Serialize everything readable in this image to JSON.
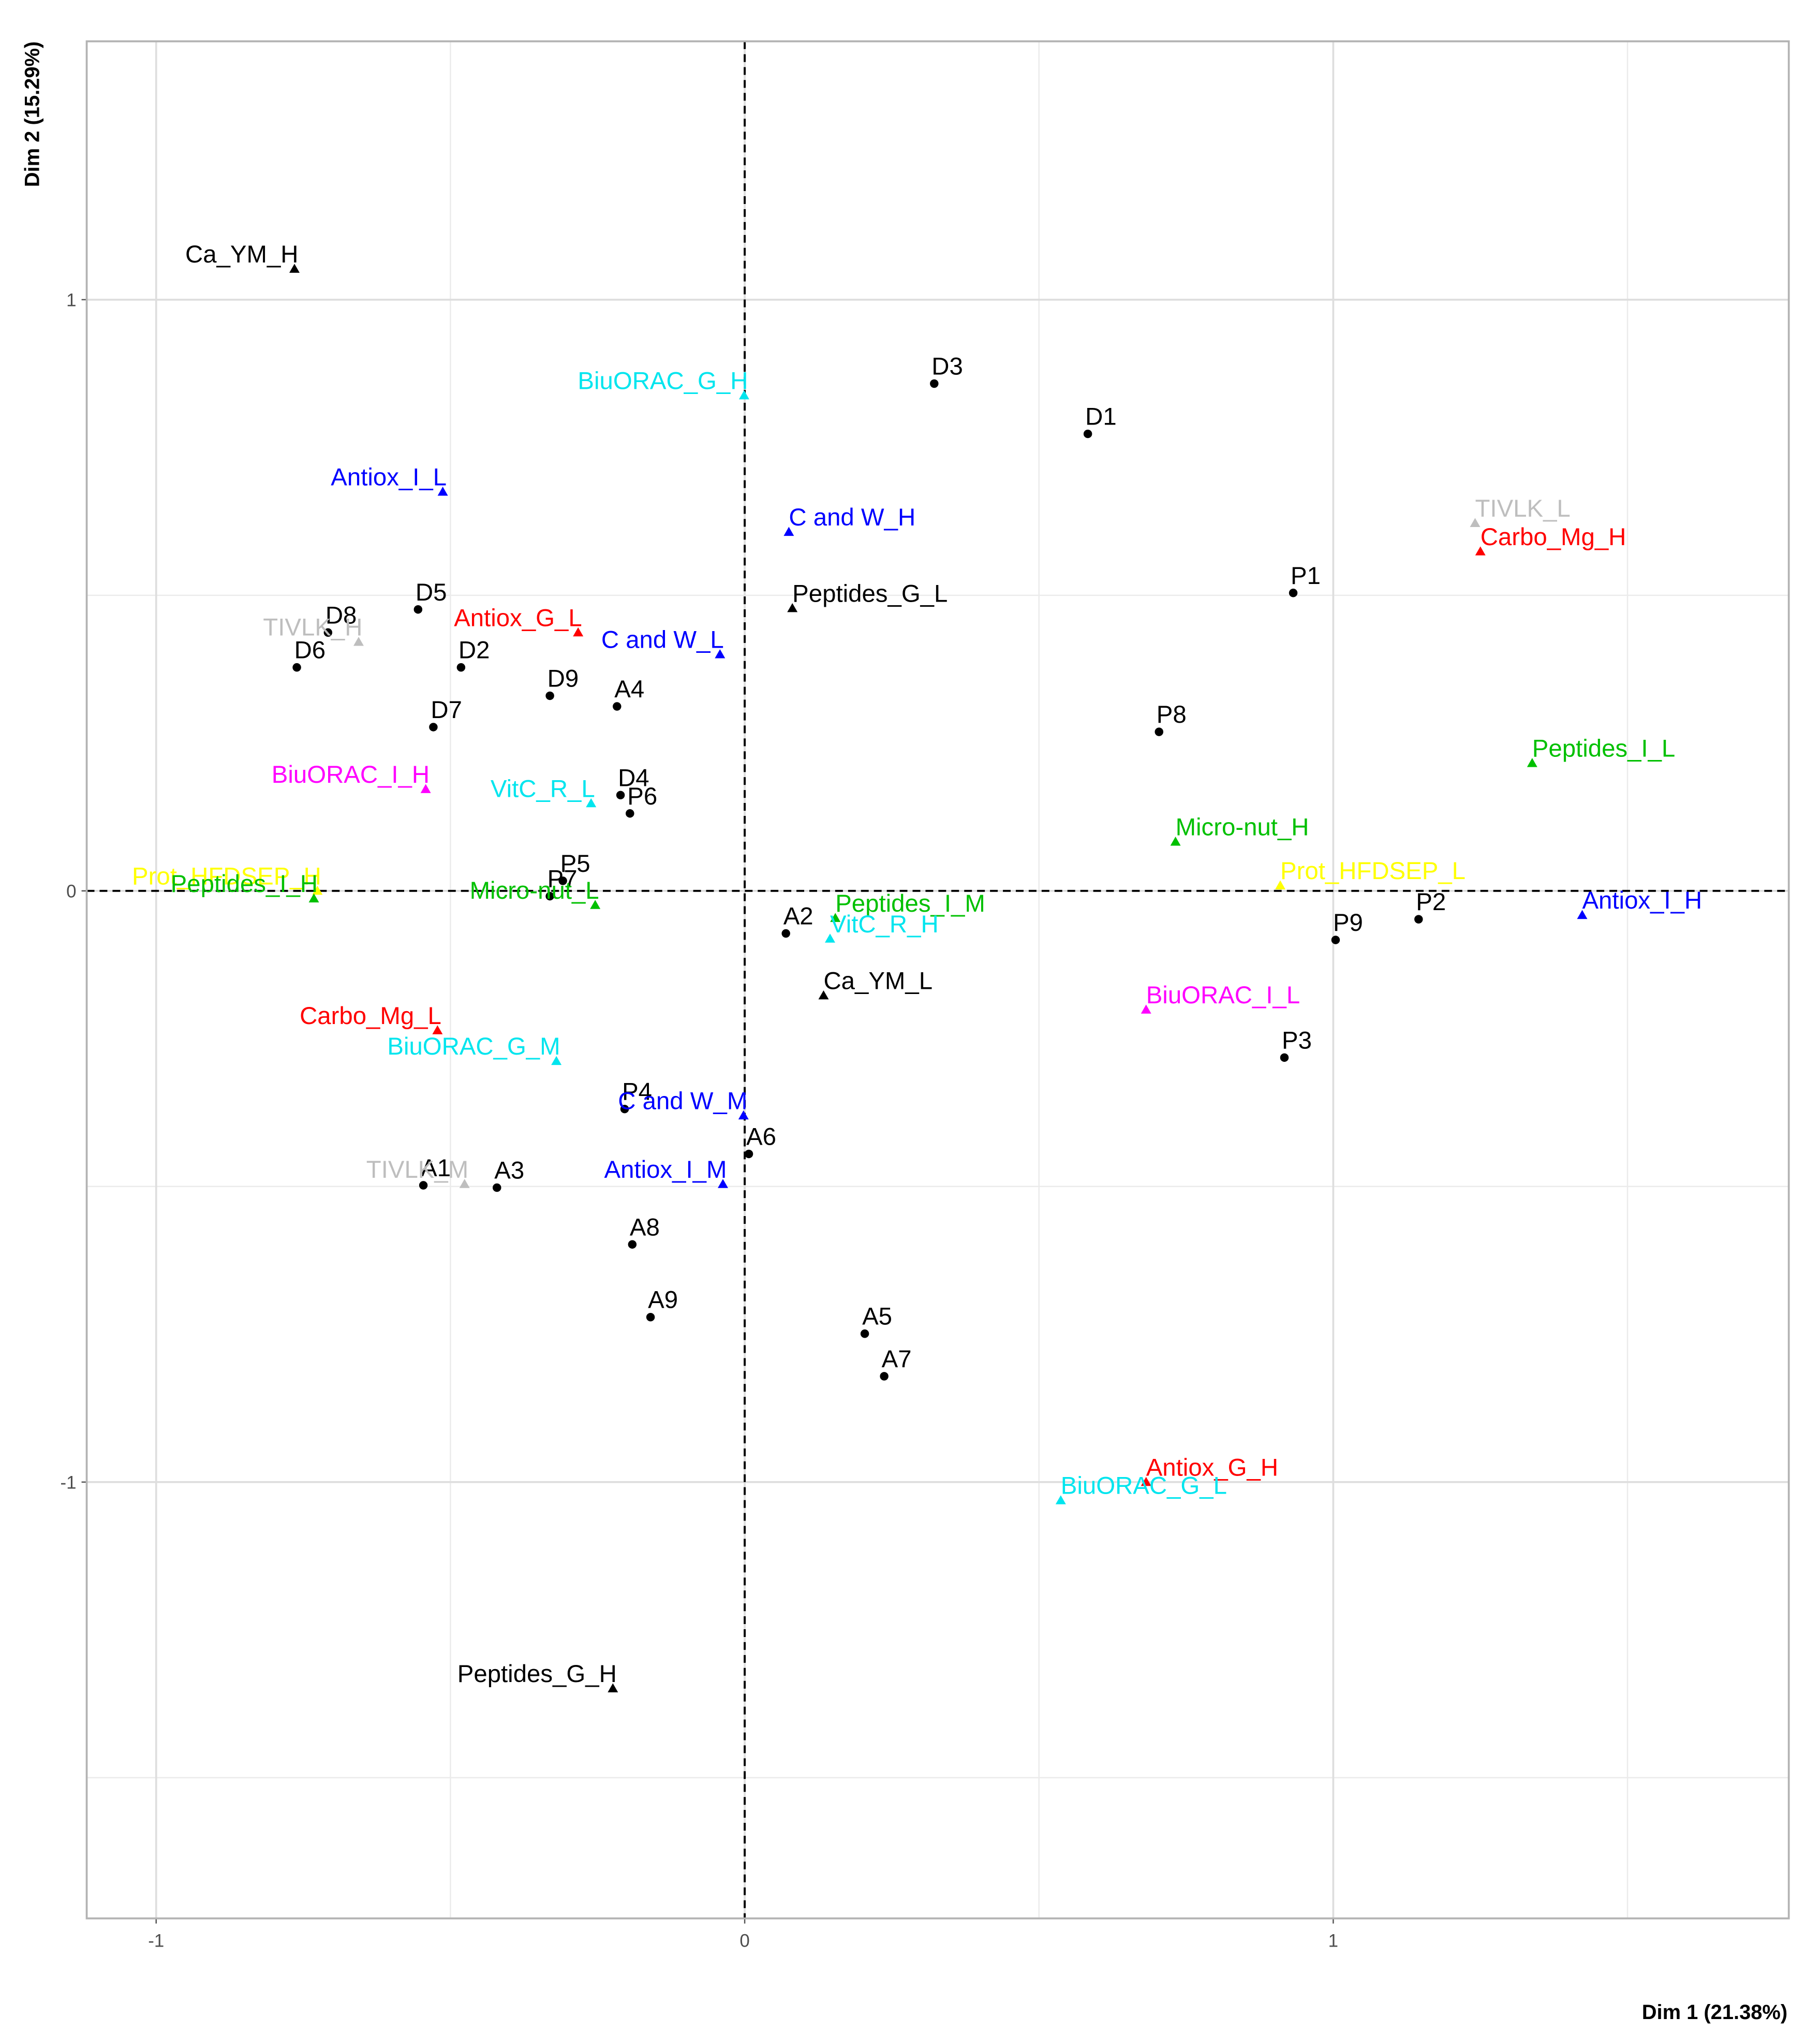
{
  "chart_data": {
    "type": "scatter",
    "x_label": "Dim 1 (21.38%)",
    "y_label": "Dim 2 (15.29%)",
    "xlim": [
      -1.118,
      1.774
    ],
    "ylim": [
      -1.738,
      1.437
    ],
    "xticks": [
      -1,
      0,
      1
    ],
    "yticks": [
      -1,
      0,
      1
    ],
    "x_minor_grid": [
      -0.5,
      0.5,
      1.5
    ],
    "y_minor_grid": [
      -1.5,
      -0.5,
      0.5
    ],
    "grid": true,
    "reference_x": 0,
    "reference_y": 0,
    "points": [
      {
        "label": "D3",
        "x": 0.322,
        "y": 0.858,
        "color": "#000000",
        "shape": "circle"
      },
      {
        "label": "D1",
        "x": 0.583,
        "y": 0.773,
        "color": "#000000",
        "shape": "circle"
      },
      {
        "label": "P1",
        "x": 0.932,
        "y": 0.504,
        "color": "#000000",
        "shape": "circle"
      },
      {
        "label": "D5",
        "x": -0.555,
        "y": 0.476,
        "color": "#000000",
        "shape": "circle"
      },
      {
        "label": "D8",
        "x": -0.708,
        "y": 0.437,
        "color": "#000000",
        "shape": "circle"
      },
      {
        "label": "D6",
        "x": -0.761,
        "y": 0.378,
        "color": "#000000",
        "shape": "circle"
      },
      {
        "label": "D2",
        "x": -0.482,
        "y": 0.378,
        "color": "#000000",
        "shape": "circle"
      },
      {
        "label": "D9",
        "x": -0.331,
        "y": 0.33,
        "color": "#000000",
        "shape": "circle"
      },
      {
        "label": "A4",
        "x": -0.217,
        "y": 0.312,
        "color": "#000000",
        "shape": "circle"
      },
      {
        "label": "D7",
        "x": -0.529,
        "y": 0.277,
        "color": "#000000",
        "shape": "circle"
      },
      {
        "label": "P8",
        "x": 0.704,
        "y": 0.269,
        "color": "#000000",
        "shape": "circle"
      },
      {
        "label": "D4",
        "x": -0.211,
        "y": 0.162,
        "color": "#000000",
        "shape": "circle"
      },
      {
        "label": "P6",
        "x": -0.195,
        "y": 0.131,
        "color": "#000000",
        "shape": "circle"
      },
      {
        "label": "P5",
        "x": -0.309,
        "y": 0.017,
        "color": "#000000",
        "shape": "circle"
      },
      {
        "label": "P7",
        "x": -0.331,
        "y": -0.009,
        "color": "#000000",
        "shape": "circle"
      },
      {
        "label": "A2",
        "x": 0.07,
        "y": -0.072,
        "color": "#000000",
        "shape": "circle"
      },
      {
        "label": "P9",
        "x": 1.004,
        "y": -0.083,
        "color": "#000000",
        "shape": "circle"
      },
      {
        "label": "P2",
        "x": 1.145,
        "y": -0.048,
        "color": "#000000",
        "shape": "circle"
      },
      {
        "label": "P3",
        "x": 0.917,
        "y": -0.282,
        "color": "#000000",
        "shape": "circle"
      },
      {
        "label": "P4",
        "x": -0.204,
        "y": -0.369,
        "color": "#000000",
        "shape": "circle"
      },
      {
        "label": "A6",
        "x": 0.007,
        "y": -0.445,
        "color": "#000000",
        "shape": "circle"
      },
      {
        "label": "A1",
        "x": -0.546,
        "y": -0.498,
        "color": "#000000",
        "shape": "circle"
      },
      {
        "label": "A3",
        "x": -0.421,
        "y": -0.502,
        "color": "#000000",
        "shape": "circle"
      },
      {
        "label": "A8",
        "x": -0.191,
        "y": -0.598,
        "color": "#000000",
        "shape": "circle"
      },
      {
        "label": "A9",
        "x": -0.16,
        "y": -0.721,
        "color": "#000000",
        "shape": "circle"
      },
      {
        "label": "A5",
        "x": 0.204,
        "y": -0.749,
        "color": "#000000",
        "shape": "circle"
      },
      {
        "label": "A7",
        "x": 0.237,
        "y": -0.821,
        "color": "#000000",
        "shape": "circle"
      },
      {
        "label": "Ca_YM_H",
        "x": -0.765,
        "y": 1.052,
        "color": "#000000",
        "shape": "triangle"
      },
      {
        "label": "BiuORAC_G_H",
        "x": -0.001,
        "y": 0.838,
        "color": "#00e5ee",
        "shape": "triangle"
      },
      {
        "label": "Antiox_I_L",
        "x": -0.513,
        "y": 0.675,
        "color": "#0000ff",
        "shape": "triangle"
      },
      {
        "label": "C and W_H",
        "x": 0.075,
        "y": 0.607,
        "color": "#0000ff",
        "shape": "triangle"
      },
      {
        "label": "TIVLK_L",
        "x": 1.241,
        "y": 0.622,
        "color": "#bebebe",
        "shape": "triangle"
      },
      {
        "label": "Carbo_Mg_H",
        "x": 1.25,
        "y": 0.574,
        "color": "#ff0000",
        "shape": "triangle"
      },
      {
        "label": "Peptides_G_L",
        "x": 0.081,
        "y": 0.478,
        "color": "#000000",
        "shape": "triangle"
      },
      {
        "label": "Antiox_G_L",
        "x": -0.283,
        "y": 0.437,
        "color": "#ff0000",
        "shape": "triangle"
      },
      {
        "label": "TIVLK_H",
        "x": -0.656,
        "y": 0.421,
        "color": "#bebebe",
        "shape": "triangle"
      },
      {
        "label": "C and W_L",
        "x": -0.042,
        "y": 0.4,
        "color": "#0000ff",
        "shape": "triangle"
      },
      {
        "label": "Peptides_I_L",
        "x": 1.338,
        "y": 0.216,
        "color": "#00c000",
        "shape": "triangle"
      },
      {
        "label": "BiuORAC_I_H",
        "x": -0.542,
        "y": 0.172,
        "color": "#ff00ff",
        "shape": "triangle"
      },
      {
        "label": "VitC_R_L",
        "x": -0.261,
        "y": 0.148,
        "color": "#00e5ee",
        "shape": "triangle"
      },
      {
        "label": "Micro-nut_H",
        "x": 0.732,
        "y": 0.083,
        "color": "#00c000",
        "shape": "triangle"
      },
      {
        "label": "Prot_HFDSEP_L",
        "x": 0.91,
        "y": 0.009,
        "color": "#ffff00",
        "shape": "triangle"
      },
      {
        "label": "Prot_HFDSEP_H",
        "x": -0.726,
        "y": 0.0,
        "color": "#ffff00",
        "shape": "triangle"
      },
      {
        "label": "Peptides_I_H",
        "x": -0.732,
        "y": -0.013,
        "color": "#00c000",
        "shape": "triangle"
      },
      {
        "label": "Micro-nut_L",
        "x": -0.254,
        "y": -0.024,
        "color": "#00c000",
        "shape": "triangle"
      },
      {
        "label": "Antiox_I_H",
        "x": 1.423,
        "y": -0.041,
        "color": "#0000ff",
        "shape": "triangle"
      },
      {
        "label": "Peptides_I_M",
        "x": 0.154,
        "y": -0.046,
        "color": "#00c000",
        "shape": "triangle"
      },
      {
        "label": "VitC_R_H",
        "x": 0.145,
        "y": -0.081,
        "color": "#00e5ee",
        "shape": "triangle"
      },
      {
        "label": "Ca_YM_L",
        "x": 0.134,
        "y": -0.177,
        "color": "#000000",
        "shape": "triangle"
      },
      {
        "label": "BiuORAC_I_L",
        "x": 0.682,
        "y": -0.201,
        "color": "#ff00ff",
        "shape": "triangle"
      },
      {
        "label": "Carbo_Mg_L",
        "x": -0.522,
        "y": -0.236,
        "color": "#ff0000",
        "shape": "triangle"
      },
      {
        "label": "BiuORAC_G_M",
        "x": -0.32,
        "y": -0.288,
        "color": "#00e5ee",
        "shape": "triangle"
      },
      {
        "label": "C and W_M",
        "x": -0.002,
        "y": -0.38,
        "color": "#0000ff",
        "shape": "triangle"
      },
      {
        "label": "TIVLK_M",
        "x": -0.476,
        "y": -0.496,
        "color": "#bebebe",
        "shape": "triangle"
      },
      {
        "label": "Antiox_I_M",
        "x": -0.037,
        "y": -0.496,
        "color": "#0000ff",
        "shape": "triangle"
      },
      {
        "label": "Antiox_G_H",
        "x": 0.682,
        "y": -1.0,
        "color": "#ff0000",
        "shape": "triangle"
      },
      {
        "label": "BiuORAC_G_L",
        "x": 0.537,
        "y": -1.031,
        "color": "#00e5ee",
        "shape": "triangle"
      },
      {
        "label": "Peptides_G_H",
        "x": -0.224,
        "y": -1.349,
        "color": "#000000",
        "shape": "triangle"
      }
    ]
  }
}
